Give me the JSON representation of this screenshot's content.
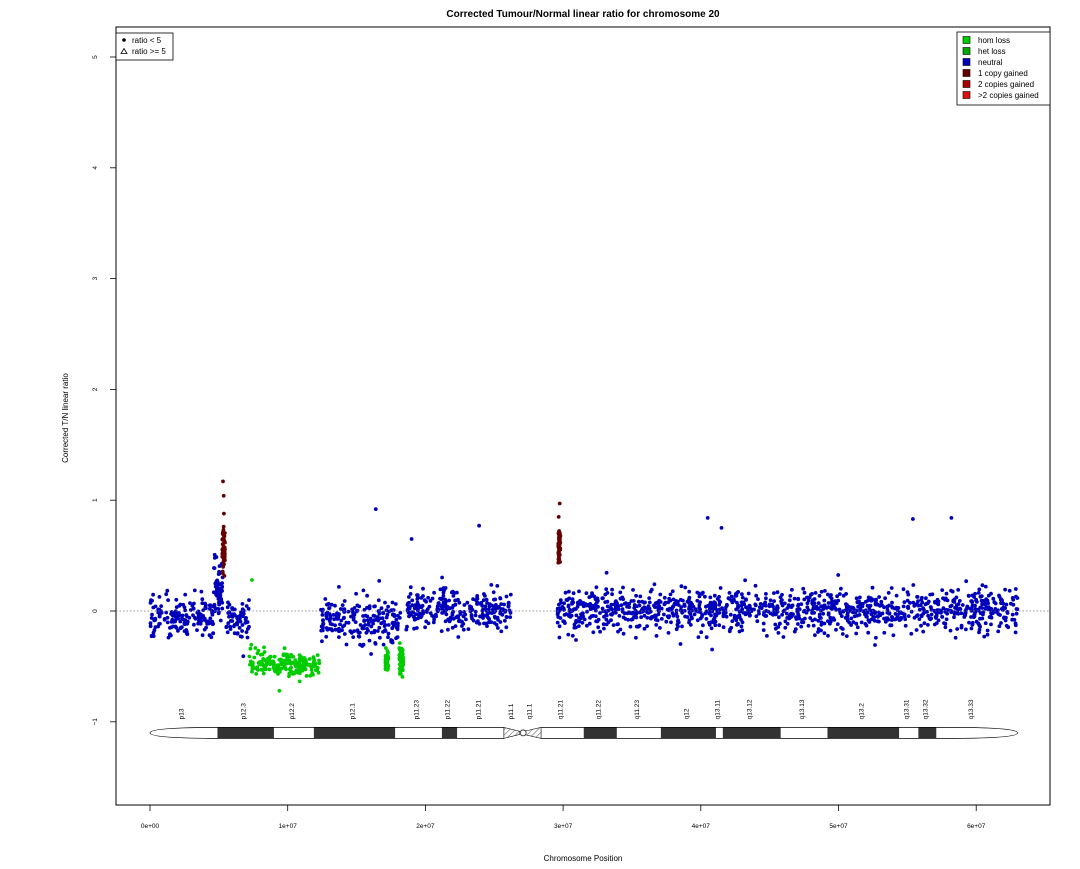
{
  "chart_data": {
    "type": "scatter",
    "title": "Corrected Tumour/Normal linear ratio for chromosome  20",
    "xlabel": "Chromosome Position",
    "ylabel": "Corrected T/N linear ratio",
    "xlim": [
      0,
      63000000
    ],
    "ylim": [
      -1.8,
      5.3
    ],
    "x_ticks": [
      0,
      10000000,
      20000000,
      30000000,
      40000000,
      50000000,
      60000000
    ],
    "x_tick_labels": [
      "0e+00",
      "1e+07",
      "2e+07",
      "3e+07",
      "4e+07",
      "5e+07",
      "6e+07"
    ],
    "y_ticks": [
      -1,
      0,
      1,
      2,
      3,
      4,
      5
    ],
    "y_tick_labels": [
      "−1",
      "0",
      "1",
      "2",
      "3",
      "4",
      "5"
    ],
    "reference_line": {
      "y": 0,
      "style": "dotted"
    },
    "shape_legend": {
      "position": "top-left",
      "entries": [
        {
          "symbol": "filled-circle",
          "label": "ratio < 5"
        },
        {
          "symbol": "triangle",
          "label": "ratio >= 5"
        }
      ]
    },
    "color_legend": {
      "position": "top-right",
      "entries": [
        {
          "label": "hom loss",
          "color": "#00cc00"
        },
        {
          "label": "het loss",
          "color": "#00aa00"
        },
        {
          "label": "neutral",
          "color": "#0000bb"
        },
        {
          "label": "1 copy gained",
          "color": "#660000"
        },
        {
          "label": "2 copies gained",
          "color": "#aa0000"
        },
        {
          "label": ">2 copies gained",
          "color": "#dd1111"
        }
      ]
    },
    "series": [
      {
        "name": "neutral",
        "color": "#0000bb",
        "segments": [
          {
            "x_start": 0,
            "x_end": 4600000,
            "center": -0.05,
            "spread": 0.22
          },
          {
            "x_start": 4600000,
            "x_end": 5300000,
            "center": 0.2,
            "spread": 0.3
          },
          {
            "x_start": 5500000,
            "x_end": 7200000,
            "center": -0.1,
            "spread": 0.22
          },
          {
            "x_start": 12400000,
            "x_end": 18200000,
            "center": -0.08,
            "spread": 0.22
          },
          {
            "x_start": 18600000,
            "x_end": 26300000,
            "center": 0.0,
            "spread": 0.22
          },
          {
            "x_start": 29500000,
            "x_end": 63000000,
            "center": 0.0,
            "spread": 0.22
          }
        ],
        "outliers": [
          [
            16400000,
            0.92
          ],
          [
            19000000,
            0.65
          ],
          [
            23900000,
            0.77
          ],
          [
            40500000,
            0.84
          ],
          [
            41500000,
            0.75
          ],
          [
            58200000,
            0.84
          ],
          [
            55400000,
            0.83
          ]
        ]
      },
      {
        "name": "hom loss",
        "color": "#00cc00",
        "segments": [
          {
            "x_start": 7200000,
            "x_end": 12300000,
            "center": -0.48,
            "spread": 0.14
          },
          {
            "x_start": 17100000,
            "x_end": 17300000,
            "center": -0.45,
            "spread": 0.12
          },
          {
            "x_start": 18100000,
            "x_end": 18400000,
            "center": -0.45,
            "spread": 0.14
          }
        ],
        "outliers": [
          [
            7400000,
            0.28
          ],
          [
            9400000,
            -0.72
          ]
        ]
      },
      {
        "name": "1 copy gained",
        "color": "#660000",
        "segments": [
          {
            "x_start": 5250000,
            "x_end": 5450000,
            "center": 0.55,
            "spread": 0.22
          },
          {
            "x_start": 29650000,
            "x_end": 29800000,
            "center": 0.6,
            "spread": 0.18
          }
        ],
        "outliers": [
          [
            5300000,
            1.17
          ],
          [
            5350000,
            1.04
          ],
          [
            29750000,
            0.97
          ]
        ]
      }
    ],
    "ideogram": {
      "y": -1.1,
      "centromere_start": 26000000,
      "centromere_end": 28200000,
      "bands": [
        {
          "name": "p13",
          "start": 0,
          "end": 4900000,
          "stain": "gneg"
        },
        {
          "name": "p12.3",
          "start": 4900000,
          "end": 9000000,
          "stain": "gpos"
        },
        {
          "name": "p12.2",
          "start": 9000000,
          "end": 11900000,
          "stain": "gneg"
        },
        {
          "name": "p12.1",
          "start": 11900000,
          "end": 17800000,
          "stain": "gpos"
        },
        {
          "name": "p11.23",
          "start": 17800000,
          "end": 21200000,
          "stain": "gneg"
        },
        {
          "name": "p11.22",
          "start": 21200000,
          "end": 22300000,
          "stain": "gpos"
        },
        {
          "name": "p11.21",
          "start": 22300000,
          "end": 25700000,
          "stain": "gneg"
        },
        {
          "name": "p11.1",
          "start": 25700000,
          "end": 27000000,
          "stain": "acen"
        },
        {
          "name": "q11.1",
          "start": 27000000,
          "end": 28400000,
          "stain": "acen"
        },
        {
          "name": "q11.21",
          "start": 28400000,
          "end": 31500000,
          "stain": "gneg"
        },
        {
          "name": "q11.22",
          "start": 31500000,
          "end": 33900000,
          "stain": "gpos"
        },
        {
          "name": "q11.23",
          "start": 33900000,
          "end": 37100000,
          "stain": "gneg"
        },
        {
          "name": "q12",
          "start": 37100000,
          "end": 41100000,
          "stain": "gpos"
        },
        {
          "name": "q13.11",
          "start": 41100000,
          "end": 41600000,
          "stain": "gneg"
        },
        {
          "name": "q13.12",
          "start": 41600000,
          "end": 45800000,
          "stain": "gpos"
        },
        {
          "name": "q13.13",
          "start": 45800000,
          "end": 49200000,
          "stain": "gneg"
        },
        {
          "name": "q13.2",
          "start": 49200000,
          "end": 54400000,
          "stain": "gpos"
        },
        {
          "name": "q13.31",
          "start": 54400000,
          "end": 55800000,
          "stain": "gneg"
        },
        {
          "name": "q13.32",
          "start": 55800000,
          "end": 57100000,
          "stain": "gpos"
        },
        {
          "name": "q13.33",
          "start": 57100000,
          "end": 62400000,
          "stain": "gneg"
        }
      ]
    }
  }
}
